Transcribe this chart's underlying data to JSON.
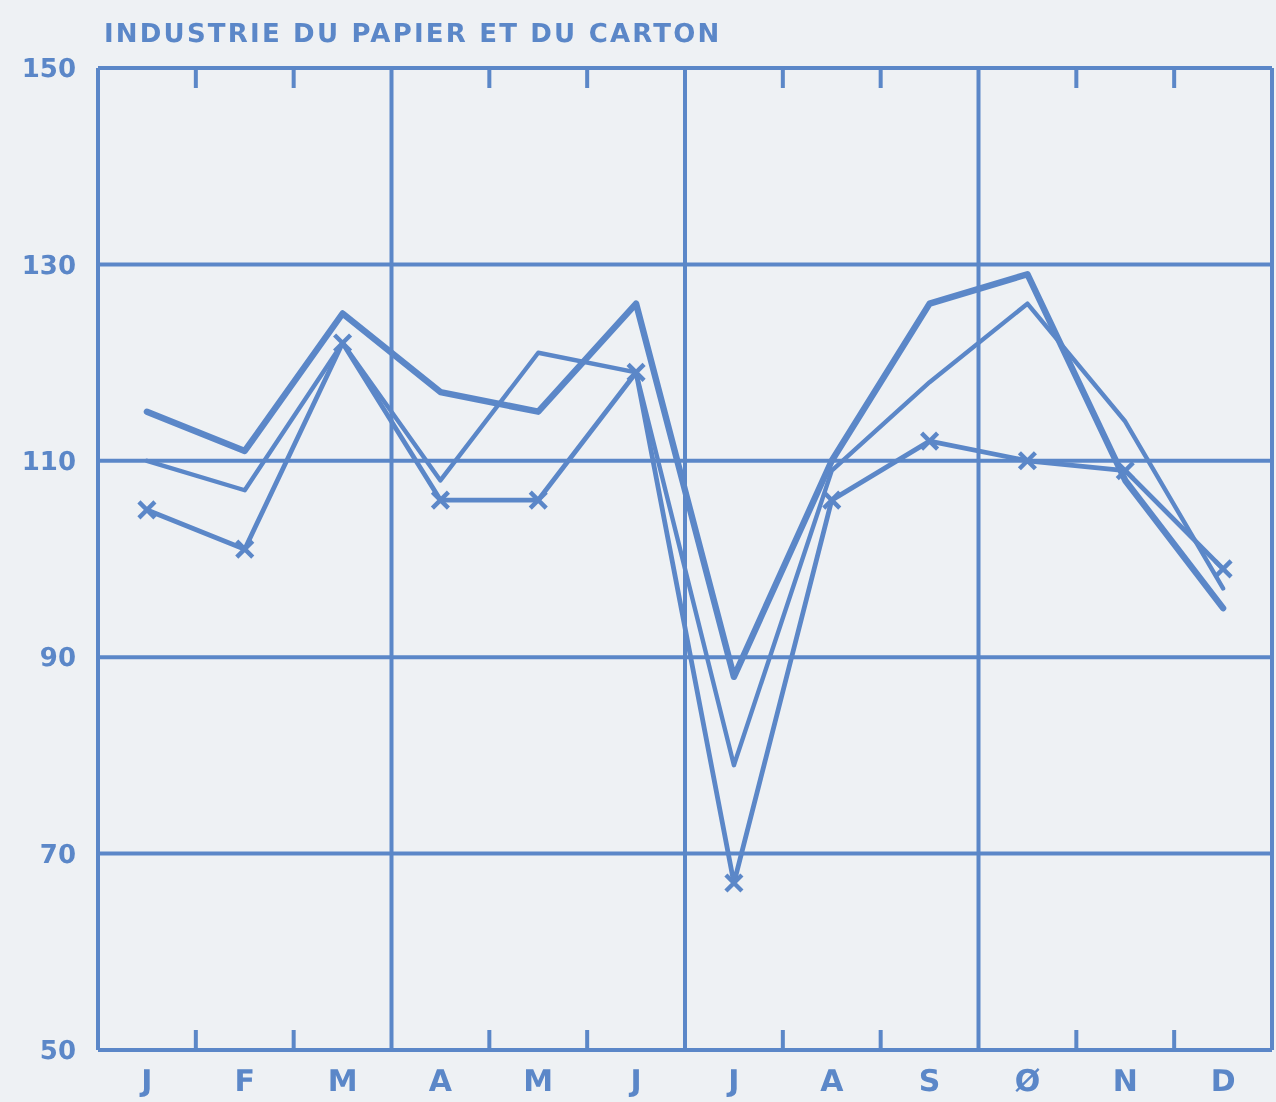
{
  "chart_data": {
    "type": "line",
    "title": "INDUSTRIE DU PAPIER ET DU CARTON",
    "categories": [
      "J",
      "F",
      "M",
      "A",
      "M",
      "J",
      "J",
      "A",
      "S",
      "Ø",
      "N",
      "D"
    ],
    "series": [
      {
        "color": "#5b87c8",
        "values": [
          115,
          111,
          125,
          117,
          115,
          126,
          88,
          110,
          126,
          129,
          108,
          95
        ]
      },
      {
        "color": "#5b87c8",
        "values": [
          110,
          107,
          122,
          108,
          121,
          119,
          79,
          109,
          118,
          126,
          114,
          97
        ]
      },
      {
        "color": "#5b87c8",
        "marker": "cross",
        "values": [
          105,
          101,
          122,
          106,
          106,
          119,
          67,
          106,
          112,
          110,
          109,
          99
        ]
      }
    ],
    "ylim": [
      50,
      150
    ],
    "yticks": [
      50,
      70,
      90,
      110,
      130,
      150
    ],
    "grid": true,
    "marker": "none",
    "line_style": "solid"
  }
}
